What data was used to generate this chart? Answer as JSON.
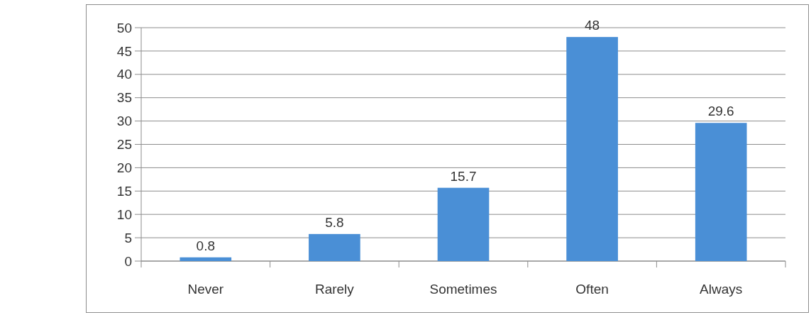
{
  "chart_data": {
    "type": "bar",
    "categories": [
      "Never",
      "Rarely",
      "Sometimes",
      "Often",
      "Always"
    ],
    "values": [
      0.8,
      5.8,
      15.7,
      48,
      29.6
    ],
    "color": "#4a8fd6",
    "ylim": [
      0,
      50
    ],
    "yticks": [
      0,
      5,
      10,
      15,
      20,
      25,
      30,
      35,
      40,
      45,
      50
    ],
    "grid": "y",
    "data_labels": true
  }
}
